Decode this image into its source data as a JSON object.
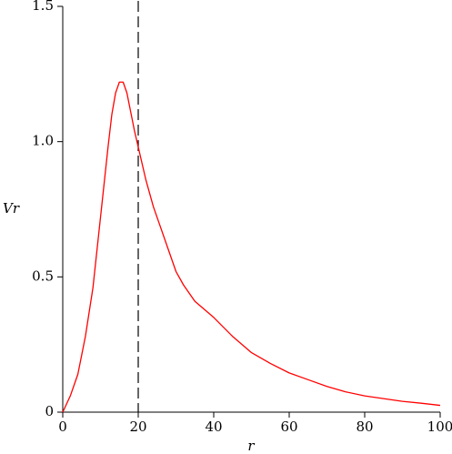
{
  "chart_data": {
    "type": "line",
    "xlabel": "r",
    "ylabel": "Vr",
    "x": [
      0,
      2,
      4,
      6,
      8,
      10,
      12,
      13,
      14,
      15,
      16,
      17,
      18,
      19,
      20,
      22,
      24,
      26,
      28,
      30,
      32,
      35,
      40,
      45,
      50,
      55,
      60,
      65,
      70,
      75,
      80,
      85,
      90,
      95,
      100
    ],
    "values": [
      0,
      0.06,
      0.14,
      0.28,
      0.46,
      0.72,
      0.98,
      1.1,
      1.18,
      1.22,
      1.22,
      1.18,
      1.11,
      1.04,
      0.98,
      0.86,
      0.76,
      0.68,
      0.6,
      0.52,
      0.47,
      0.41,
      0.35,
      0.28,
      0.22,
      0.18,
      0.145,
      0.12,
      0.095,
      0.075,
      0.06,
      0.05,
      0.04,
      0.033,
      0.025
    ],
    "color": "#ff0000",
    "vline_x": 20,
    "xlim": [
      0,
      100
    ],
    "ylim": [
      0,
      1.5
    ],
    "xticks": [
      0,
      20,
      40,
      60,
      80,
      100
    ],
    "yticks": [
      {
        "value": 0,
        "label": "0"
      },
      0.5,
      {
        "value": 1,
        "label": "1.0"
      },
      1.5
    ],
    "grid": false
  }
}
